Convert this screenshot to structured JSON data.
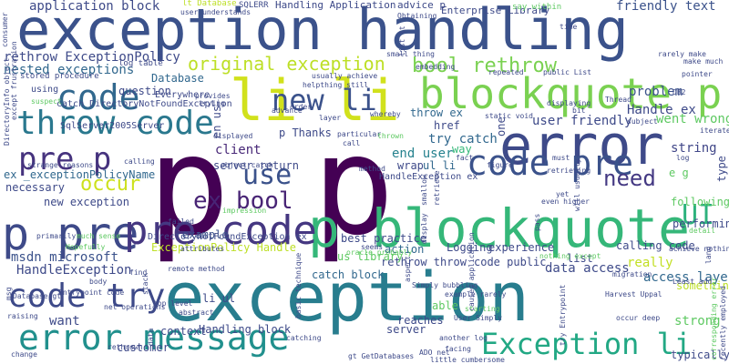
{
  "words": [
    {
      "text": "p p",
      "color": "#440154",
      "rotated": false
    },
    {
      "text": "exception handling",
      "color": "#3b528b",
      "rotated": false
    },
    {
      "text": "exception",
      "color": "#287d8e",
      "rotated": false
    },
    {
      "text": "p blockquote",
      "color": "#35b779",
      "rotated": false
    },
    {
      "text": "error",
      "color": "#3e4a89",
      "rotated": false
    },
    {
      "text": "li li",
      "color": "#d1e11c",
      "rotated": false
    },
    {
      "text": "blockquote p",
      "color": "#7ad151",
      "rotated": false
    },
    {
      "text": "p pre",
      "color": "#3e4a89",
      "rotated": false
    },
    {
      "text": "pre code",
      "color": "#453781",
      "rotated": false
    },
    {
      "text": "error message",
      "color": "#21908d",
      "rotated": false
    },
    {
      "text": "code pre",
      "color": "#3b528b",
      "rotated": false
    },
    {
      "text": "throw code",
      "color": "#2a788e",
      "rotated": false
    },
    {
      "text": "code",
      "color": "#31688e",
      "rotated": false
    },
    {
      "text": "code try",
      "color": "#3e4a89",
      "rotated": false
    },
    {
      "text": "Exception li",
      "color": "#22a884",
      "rotated": false
    },
    {
      "text": "pre p",
      "color": "#46337e",
      "rotated": false
    },
    {
      "text": "new li",
      "color": "#3b528b",
      "rotated": false
    },
    {
      "text": "original exception",
      "color": "#bddf26",
      "rotated": false
    },
    {
      "text": "bool rethrow",
      "color": "#7ad151",
      "rotated": false
    },
    {
      "text": "ex bool",
      "color": "#482475",
      "rotated": false
    },
    {
      "text": "use",
      "color": "#3b528b",
      "rotated": false
    },
    {
      "text": "UI",
      "color": "#2db27d",
      "rotated": false
    },
    {
      "text": "occur",
      "color": "#cde11d",
      "rotated": false
    },
    {
      "text": "need",
      "color": "#443983",
      "rotated": false
    },
    {
      "text": "HandleException",
      "color": "#3e4a89",
      "rotated": false
    },
    {
      "text": "msdn microsoft",
      "color": "#3b528b",
      "rotated": false
    },
    {
      "text": "want",
      "color": "#3e4a89",
      "rotated": false
    },
    {
      "text": "try catch",
      "color": "#31688e",
      "rotated": false
    },
    {
      "text": "end user",
      "color": "#26828e",
      "rotated": false
    },
    {
      "text": "client",
      "color": "#482878",
      "rotated": false
    },
    {
      "text": "data access",
      "color": "#3e4a89",
      "rotated": false
    },
    {
      "text": "really",
      "color": "#c2df23",
      "rotated": false
    },
    {
      "text": "access layer",
      "color": "#31688e",
      "rotated": false
    },
    {
      "text": "strong",
      "color": "#5ec962",
      "rotated": false
    },
    {
      "text": "Handle ex",
      "color": "#3e4a89",
      "rotated": false
    },
    {
      "text": "went wrong",
      "color": "#5ec962",
      "rotated": false
    },
    {
      "text": "string",
      "color": "#404688",
      "rotated": false
    },
    {
      "text": "user friendly",
      "color": "#3e4a89",
      "rotated": false
    },
    {
      "text": "problem",
      "color": "#3b528b",
      "rotated": false
    },
    {
      "text": "rethrow ExceptionPolicy",
      "color": "#3e4a89",
      "rotated": false
    },
    {
      "text": "nested exceptions",
      "color": "#31688e",
      "rotated": false
    },
    {
      "text": "application block",
      "color": "#3e4a89",
      "rotated": false
    },
    {
      "text": "friendly text",
      "color": "#3b528b",
      "rotated": false
    },
    {
      "text": "Database",
      "color": "#31688e",
      "rotated": false
    },
    {
      "text": "question",
      "color": "#3e4a89",
      "rotated": false
    },
    {
      "text": "throw ex",
      "color": "#31688e",
      "rotated": false
    },
    {
      "text": "href",
      "color": "#3e4a89",
      "rotated": false
    },
    {
      "text": "ul li",
      "color": "#31688e",
      "rotated": false
    },
    {
      "text": "way",
      "color": "#35b779",
      "rotated": false
    },
    {
      "text": "wrap",
      "color": "#3e4a89",
      "rotated": false
    },
    {
      "text": "new exception",
      "color": "#3e4a89",
      "rotated": false
    },
    {
      "text": "ex _exceptionPolicyName",
      "color": "#31688e",
      "rotated": false
    },
    {
      "text": "necessary",
      "color": "#3e4a89",
      "rotated": false
    },
    {
      "text": "example",
      "color": "#3b528b",
      "rotated": false
    },
    {
      "text": "ExceptionPolicy Handle",
      "color": "#bddf26",
      "rotated": false
    },
    {
      "text": "server return",
      "color": "#3e4a89",
      "rotated": false
    },
    {
      "text": "best practice",
      "color": "#3e4a89",
      "rotated": false
    },
    {
      "text": "rethrow throw",
      "color": "#3e4a89",
      "rotated": false
    },
    {
      "text": "catch block",
      "color": "#31688e",
      "rotated": false
    },
    {
      "text": "us library",
      "color": "#5ec962",
      "rotated": false
    },
    {
      "text": "li ul",
      "color": "#3e4a89",
      "rotated": false
    },
    {
      "text": "Handling block",
      "color": "#3e4a89",
      "rotated": false
    },
    {
      "text": "customer",
      "color": "#3e4a89",
      "rotated": false
    },
    {
      "text": "context",
      "color": "#3e4a89",
      "rotated": false
    },
    {
      "text": "server",
      "color": "#3e4a89",
      "rotated": false
    },
    {
      "text": "able",
      "color": "#5ec962",
      "rotated": false
    },
    {
      "text": "reaches",
      "color": "#3e4a89",
      "rotated": false
    },
    {
      "text": "calling code",
      "color": "#3e4a89",
      "rotated": false
    },
    {
      "text": "something",
      "color": "#bddf26",
      "rotated": false
    },
    {
      "text": "typically",
      "color": "#3e4a89",
      "rotated": false
    },
    {
      "text": "list",
      "color": "#3e4a89",
      "rotated": false
    },
    {
      "text": "code public",
      "color": "#3e4a89",
      "rotated": false
    },
    {
      "text": "experience",
      "color": "#3e4a89",
      "rotated": false
    },
    {
      "text": "action",
      "color": "#31688e",
      "rotated": false
    },
    {
      "text": "Logging",
      "color": "#3e4a89",
      "rotated": false
    },
    {
      "text": "performing",
      "color": "#3e4a89",
      "rotated": false
    },
    {
      "text": "following",
      "color": "#5ec962",
      "rotated": false
    },
    {
      "text": "e g",
      "color": "#5ec962",
      "rotated": false
    },
    {
      "text": "p Thanks",
      "color": "#3e4a89",
      "rotated": false
    },
    {
      "text": "Handling Application",
      "color": "#3e4a89",
      "rotated": false
    },
    {
      "text": "Enterprise Library",
      "color": "#3e4a89",
      "rotated": false
    },
    {
      "text": "advice p",
      "color": "#3e4a89",
      "rotated": false
    },
    {
      "text": "DirectoryNotFoundException ex",
      "color": "#3e4a89",
      "rotated": false
    },
    {
      "text": "catch DirectoryNotFoundException",
      "color": "#3e4a89",
      "rotated": false
    },
    {
      "text": "SqlServer2005Server",
      "color": "#3e4a89",
      "rotated": false
    },
    {
      "text": "HandleException ex",
      "color": "#3e4a89",
      "rotated": false
    },
    {
      "text": "using",
      "color": "#3e4a89",
      "rotated": false
    },
    {
      "text": "Everywhere",
      "color": "#3e4a89",
      "rotated": false
    },
    {
      "text": "stored procedure",
      "color": "#3e4a89",
      "rotated": false
    },
    {
      "text": "log table",
      "color": "#3e4a89",
      "rotated": false
    },
    {
      "text": "lt Database",
      "color": "#bddf26",
      "rotated": false
    },
    {
      "text": "SQLERR",
      "color": "#3e4a89",
      "rotated": false
    },
    {
      "text": "say within",
      "color": "#5ec962",
      "rotated": false
    },
    {
      "text": "user understands",
      "color": "#3e4a89",
      "rotated": false
    },
    {
      "text": "Obtaining",
      "color": "#3e4a89",
      "rotated": false
    },
    {
      "text": "small thing",
      "color": "#3e4a89",
      "rotated": false
    },
    {
      "text": "helpthing still",
      "color": "#3e4a89",
      "rotated": false
    },
    {
      "text": "usually achieve",
      "color": "#3e4a89",
      "rotated": false
    },
    {
      "text": "public List",
      "color": "#3e4a89",
      "rotated": false
    },
    {
      "text": "Thread",
      "color": "#3e4a89",
      "rotated": false
    },
    {
      "text": "embedding",
      "color": "#3e4a89",
      "rotated": false
    },
    {
      "text": "repeated",
      "color": "#3e4a89",
      "rotated": false
    },
    {
      "text": "displaying",
      "color": "#3e4a89",
      "rotated": false
    },
    {
      "text": "bit",
      "color": "#3e4a89",
      "rotated": false
    },
    {
      "text": "static void",
      "color": "#3e4a89",
      "rotated": false
    },
    {
      "text": "whereby",
      "color": "#3e4a89",
      "rotated": false
    },
    {
      "text": "layer",
      "color": "#3e4a89",
      "rotated": false
    },
    {
      "text": "particular",
      "color": "#3e4a89",
      "rotated": false
    },
    {
      "text": "thrown",
      "color": "#5ec962",
      "rotated": false
    },
    {
      "text": "call",
      "color": "#3e4a89",
      "rotated": false
    },
    {
      "text": "method",
      "color": "#3e4a89",
      "rotated": false
    },
    {
      "text": "fact",
      "color": "#3e4a89",
      "rotated": false
    },
    {
      "text": "figure",
      "color": "#3e4a89",
      "rotated": false
    },
    {
      "text": "retrieving",
      "color": "#3e4a89",
      "rotated": false
    },
    {
      "text": "must",
      "color": "#3e4a89",
      "rotated": false
    },
    {
      "text": "yet",
      "color": "#3e4a89",
      "rotated": false
    },
    {
      "text": "even higher",
      "color": "#3e4a89",
      "rotated": false
    },
    {
      "text": "log",
      "color": "#3e4a89",
      "rotated": false
    },
    {
      "text": "nothing except",
      "color": "#5ec962",
      "rotated": false
    },
    {
      "text": "Simply bubbling",
      "color": "#3e4a89",
      "rotated": false
    },
    {
      "text": "example rarely",
      "color": "#3e4a89",
      "rotated": false
    },
    {
      "text": "User Simply",
      "color": "#3e4a89",
      "rotated": false
    },
    {
      "text": "starting",
      "color": "#5ec962",
      "rotated": false
    },
    {
      "text": "another log",
      "color": "#3e4a89",
      "rotated": false
    },
    {
      "text": "facing",
      "color": "#3e4a89",
      "rotated": false
    },
    {
      "text": "ADO net",
      "color": "#3e4a89",
      "rotated": false
    },
    {
      "text": "little cumbersome",
      "color": "#3e4a89",
      "rotated": false
    },
    {
      "text": "gt GetDatabases",
      "color": "#3e4a89",
      "rotated": false
    },
    {
      "text": "catching",
      "color": "#3e4a89",
      "rotated": false
    },
    {
      "text": "rethrown",
      "color": "#3e4a89",
      "rotated": false
    },
    {
      "text": "abstract",
      "color": "#3e4a89",
      "rotated": false
    },
    {
      "text": "top level",
      "color": "#3e4a89",
      "rotated": false
    },
    {
      "text": "body",
      "color": "#3e4a89",
      "rotated": false
    },
    {
      "text": "Entrypoint code",
      "color": "#3e4a89",
      "rotated": false
    },
    {
      "text": "Database gt",
      "color": "#3e4a89",
      "rotated": false
    },
    {
      "text": "raising",
      "color": "#3e4a89",
      "rotated": false
    },
    {
      "text": "change",
      "color": "#3e4a89",
      "rotated": false
    },
    {
      "text": "much sense",
      "color": "#5ec962",
      "rotated": false
    },
    {
      "text": "primarily",
      "color": "#3e4a89",
      "rotated": false
    },
    {
      "text": "strange reasons",
      "color": "#3e4a89",
      "rotated": false
    },
    {
      "text": "Hopefully",
      "color": "#5ec962",
      "rotated": false
    },
    {
      "text": "failed",
      "color": "#3e4a89",
      "rotated": false
    },
    {
      "text": "impression",
      "color": "#5ec962",
      "rotated": false
    },
    {
      "text": "attributes",
      "color": "#3e4a89",
      "rotated": false
    },
    {
      "text": "remote method",
      "color": "#3e4a89",
      "rotated": false
    },
    {
      "text": "object catch",
      "color": "#3e4a89",
      "rotated": false
    },
    {
      "text": "displayed",
      "color": "#3e4a89",
      "rotated": false
    },
    {
      "text": "calling",
      "color": "#3e4a89",
      "rotated": false
    },
    {
      "text": "find",
      "color": "#3e4a89",
      "rotated": false
    },
    {
      "text": "net operations",
      "color": "#3e4a89",
      "rotated": false
    },
    {
      "text": "oracle probably",
      "color": "#5ec962",
      "rotated": false
    },
    {
      "text": "seems",
      "color": "#3e4a89",
      "rotated": false
    },
    {
      "text": "Least add",
      "color": "#3e4a89",
      "rotated": false
    },
    {
      "text": "migration",
      "color": "#3e4a89",
      "rotated": false
    },
    {
      "text": "achieve nothing",
      "color": "#3e4a89",
      "rotated": false
    },
    {
      "text": "Harvest Uppal",
      "color": "#3e4a89",
      "rotated": false
    },
    {
      "text": "occur deep",
      "color": "#3e4a89",
      "rotated": false
    },
    {
      "text": "detail",
      "color": "#5ec962",
      "rotated": false
    },
    {
      "text": "iterate",
      "color": "#3e4a89",
      "rotated": false
    },
    {
      "text": "make much",
      "color": "#3e4a89",
      "rotated": false
    },
    {
      "text": "rarely make",
      "color": "#3e4a89",
      "rotated": false
    },
    {
      "text": "pointer",
      "color": "#3e4a89",
      "rotated": false
    },
    {
      "text": "subject",
      "color": "#3e4a89",
      "rotated": false
    },
    {
      "text": "DB2",
      "color": "#3e4a89",
      "rotated": false
    },
    {
      "text": "time",
      "color": "#3e4a89",
      "rotated": false
    },
    {
      "text": "advance",
      "color": "#3e4a89",
      "rotated": false
    },
    {
      "text": "order",
      "color": "#3e4a89",
      "rotated": false
    },
    {
      "text": "provides",
      "color": "#3e4a89",
      "rotated": false
    },
    {
      "text": "trying",
      "color": "#3e4a89",
      "rotated": false
    },
    {
      "text": "suspect",
      "color": "#5ec962",
      "rotated": false
    },
    {
      "text": "except frustration",
      "color": "#3e4a89",
      "rotated": false
    },
    {
      "text": "DirectoryInfo object",
      "color": "#3e4a89",
      "rotated": false
    },
    {
      "text": "en us",
      "color": "#3e4a89",
      "rotated": false
    },
    {
      "text": "type",
      "color": "#3e4a89",
      "rotated": false
    },
    {
      "text": "one",
      "color": "#3e4a89",
      "rotated": false
    },
    {
      "text": "consumer",
      "color": "#3e4a89",
      "rotated": false
    },
    {
      "text": "list lt",
      "color": "#3e4a89",
      "rotated": false
    },
    {
      "text": "corresponding error",
      "color": "#5ec962",
      "rotated": false
    },
    {
      "text": "recently employed",
      "color": "#3e4a89",
      "rotated": false
    },
    {
      "text": "basic technique",
      "color": "#3e4a89",
      "rotated": false
    },
    {
      "text": "try Entrypoint",
      "color": "#3e4a89",
      "rotated": false
    },
    {
      "text": "caused application",
      "color": "#3e4a89",
      "rotated": false
    },
    {
      "text": "aspect",
      "color": "#3e4a89",
      "rotated": false
    },
    {
      "text": "smallow",
      "color": "#3e4a89",
      "rotated": false
    },
    {
      "text": "retrieve",
      "color": "#3e4a89",
      "rotated": false
    },
    {
      "text": "display",
      "color": "#3e4a89",
      "rotated": false
    },
    {
      "text": "pass",
      "color": "#3e4a89",
      "rotated": false
    },
    {
      "text": "will usually",
      "color": "#3e4a89",
      "rotated": false
    },
    {
      "text": "stack",
      "color": "#3e4a89",
      "rotated": false
    },
    {
      "text": "msg",
      "color": "#3e4a89",
      "rotated": false
    },
    {
      "text": "data",
      "color": "#3e4a89",
      "rotated": false
    },
    {
      "text": "lang",
      "color": "#3e4a89",
      "rotated": false
    }
  ]
}
